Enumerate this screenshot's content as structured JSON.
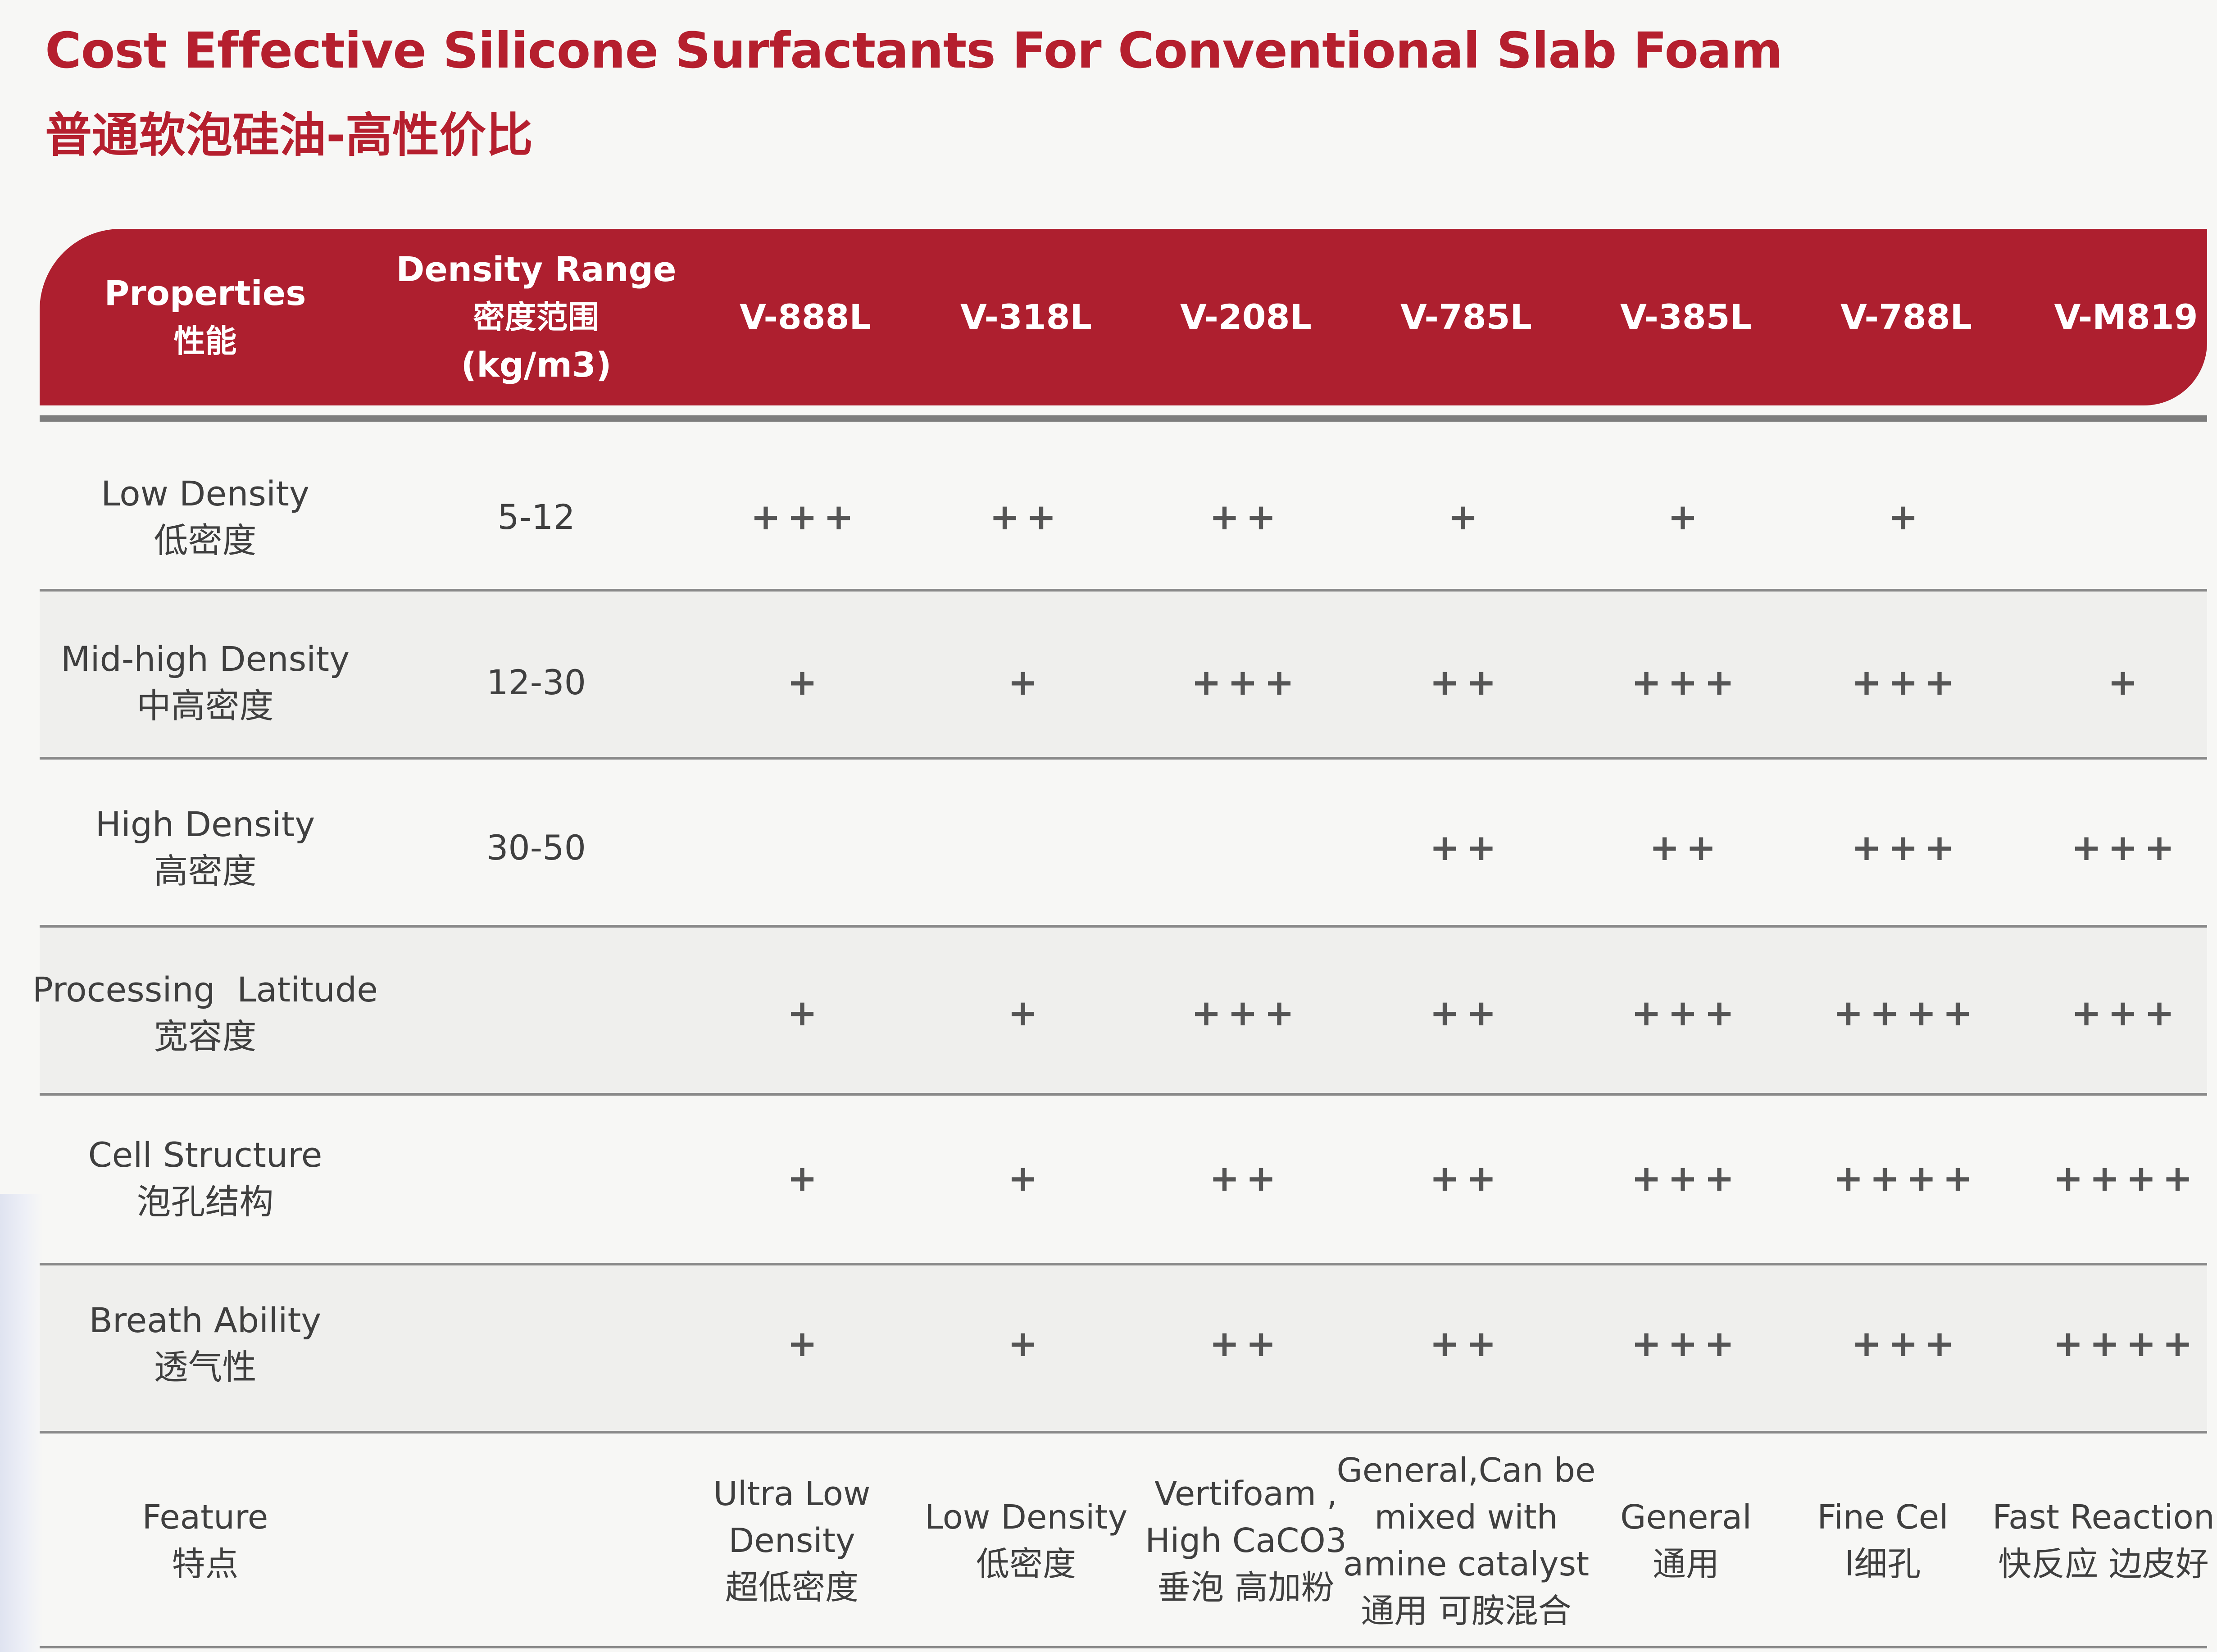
{
  "title_en": "Cost Effective Silicone Surfactants For Conventional Slab Foam",
  "title_cn": "普通软泡硅油-高性价比",
  "header": {
    "properties_en": "Properties",
    "properties_cn": "性能",
    "density_en": "Density Range",
    "density_cn": "密度范围",
    "density_unit": "(kg/m3)",
    "products": [
      "V-888L",
      "V-318L",
      "V-208L",
      "V-785L",
      "V-385L",
      "V-788L",
      "V-M819"
    ]
  },
  "rows": [
    {
      "name_en": "Low Density",
      "name_cn": "低密度",
      "range": "5-12",
      "values": [
        "+++",
        "++",
        "++",
        "+",
        "+",
        "+",
        ""
      ]
    },
    {
      "name_en": "Mid-high Density",
      "name_cn": "中高密度",
      "range": "12-30",
      "values": [
        "+",
        "+",
        "+++",
        "++",
        "+++",
        "+++",
        "+"
      ]
    },
    {
      "name_en": "High Density",
      "name_cn": "高密度",
      "range": "30-50",
      "values": [
        "",
        "",
        "",
        "++",
        "++",
        "+++",
        "+++"
      ]
    },
    {
      "name_en": "Processing  Latitude",
      "name_cn": "宽容度",
      "range": "",
      "values": [
        "+",
        "+",
        "+++",
        "++",
        "+++",
        "++++",
        "+++"
      ]
    },
    {
      "name_en": "Cell Structure",
      "name_cn": "泡孔结构",
      "range": "",
      "values": [
        "+",
        "+",
        "++",
        "++",
        "+++",
        "++++",
        "++++"
      ]
    },
    {
      "name_en": "Breath Ability",
      "name_cn": "透气性",
      "range": "",
      "values": [
        "+",
        "+",
        "++",
        "++",
        "+++",
        "+++",
        "++++"
      ]
    }
  ],
  "feature": {
    "name_en": "Feature",
    "name_cn": "特点",
    "items": [
      {
        "l1": "Ultra  Low",
        "l2": "Density",
        "l3": "超低密度",
        "l4": ""
      },
      {
        "l1": "Low Density",
        "l2": "低密度",
        "l3": "",
        "l4": ""
      },
      {
        "l1": "Vertifoam ,",
        "l2": "High CaCO3",
        "l3": "垂泡 高加粉",
        "l4": ""
      },
      {
        "l1": "General,Can be",
        "l2": "mixed with",
        "l3": "amine catalyst",
        "l4": "通用 可胺混合"
      },
      {
        "l1": "General",
        "l2": "通用",
        "l3": "",
        "l4": ""
      },
      {
        "l1": "Fine Cel",
        "l2": "l细孔",
        "l3": "",
        "l4": ""
      },
      {
        "l1": "Fast Reaction",
        "l2": "快反应 边皮好",
        "l3": "",
        "l4": ""
      }
    ]
  }
}
